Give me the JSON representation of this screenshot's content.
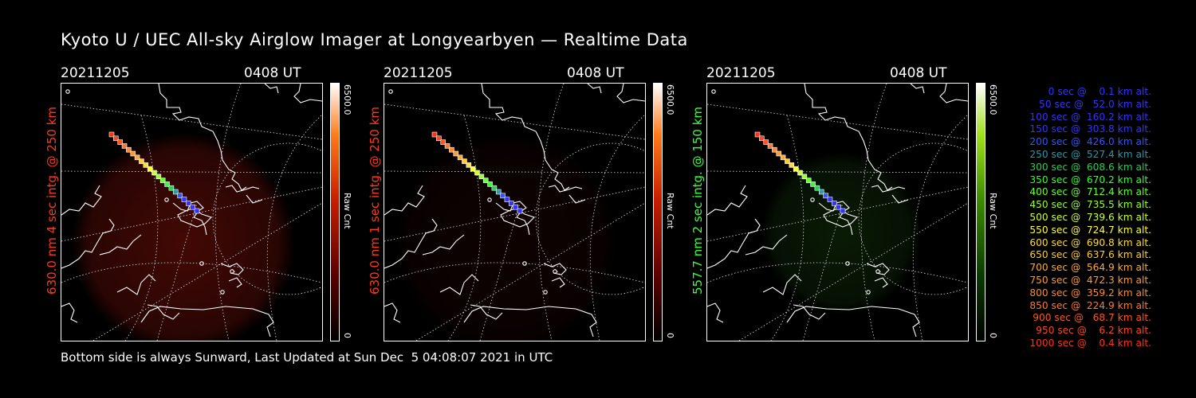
{
  "header": {
    "title": "Kyoto U / UEC All-sky Airglow Imager at Longyearbyen — Realtime Data"
  },
  "panels": [
    {
      "date": "20211205",
      "time": "0408 UT",
      "label": "630.0 nm 4 sec intg. @ 250 km",
      "cbar_max": "6500.0",
      "cbar_min": "0",
      "cbar_unit": "Raw Cnt",
      "label_color": "#ff3a1a",
      "theme": "red",
      "glow_opacity": 0.55
    },
    {
      "date": "20211205",
      "time": "0408 UT",
      "label": "630.0 nm 1 sec intg. @ 250 km",
      "cbar_max": "6500.0",
      "cbar_min": "0",
      "cbar_unit": "Raw Cnt",
      "label_color": "#ff3a1a",
      "theme": "red",
      "glow_opacity": 0.12
    },
    {
      "date": "20211205",
      "time": "0408 UT",
      "label": "557.7 nm 2 sec intg. @ 150 km",
      "cbar_max": "6500.0",
      "cbar_min": "0",
      "cbar_unit": "Raw Cnt",
      "label_color": "#3cff3c",
      "theme": "green",
      "glow_opacity": 0.3
    }
  ],
  "legend": [
    {
      "text": "   0 sec @    0.1 km alt.",
      "color": "#3333ff"
    },
    {
      "text": "  50 sec @   52.0 km alt.",
      "color": "#3333ff"
    },
    {
      "text": " 100 sec @  160.2 km alt.",
      "color": "#3333ff"
    },
    {
      "text": " 150 sec @  303.8 km alt.",
      "color": "#3333ff"
    },
    {
      "text": " 200 sec @  426.0 km alt.",
      "color": "#3355ff"
    },
    {
      "text": " 250 sec @  527.4 km alt.",
      "color": "#2a9aa8"
    },
    {
      "text": " 300 sec @  608.6 km alt.",
      "color": "#2ecc55"
    },
    {
      "text": " 350 sec @  670.2 km alt.",
      "color": "#33ff33"
    },
    {
      "text": " 400 sec @  712.4 km alt.",
      "color": "#66ff33"
    },
    {
      "text": " 450 sec @  735.5 km alt.",
      "color": "#99ff33"
    },
    {
      "text": " 500 sec @  739.6 km alt.",
      "color": "#ccff33"
    },
    {
      "text": " 550 sec @  724.7 km alt.",
      "color": "#ffff33"
    },
    {
      "text": " 600 sec @  690.8 km alt.",
      "color": "#ffdd33"
    },
    {
      "text": " 650 sec @  637.6 km alt.",
      "color": "#ffcc33"
    },
    {
      "text": " 700 sec @  564.9 km alt.",
      "color": "#ffaa33"
    },
    {
      "text": " 750 sec @  472.3 km alt.",
      "color": "#ff9933"
    },
    {
      "text": " 800 sec @  359.2 km alt.",
      "color": "#ff8833"
    },
    {
      "text": " 850 sec @  224.9 km alt.",
      "color": "#ff7733"
    },
    {
      "text": " 900 sec @   68.7 km alt.",
      "color": "#ff5522"
    },
    {
      "text": " 950 sec @    6.2 km alt.",
      "color": "#ff4422"
    },
    {
      "text": "1000 sec @    0.4 km alt.",
      "color": "#ff3311"
    }
  ],
  "footer": {
    "text": "Bottom side is always Sunward, Last Updated at Sun Dec  5 04:08:07 2021 in UTC"
  }
}
